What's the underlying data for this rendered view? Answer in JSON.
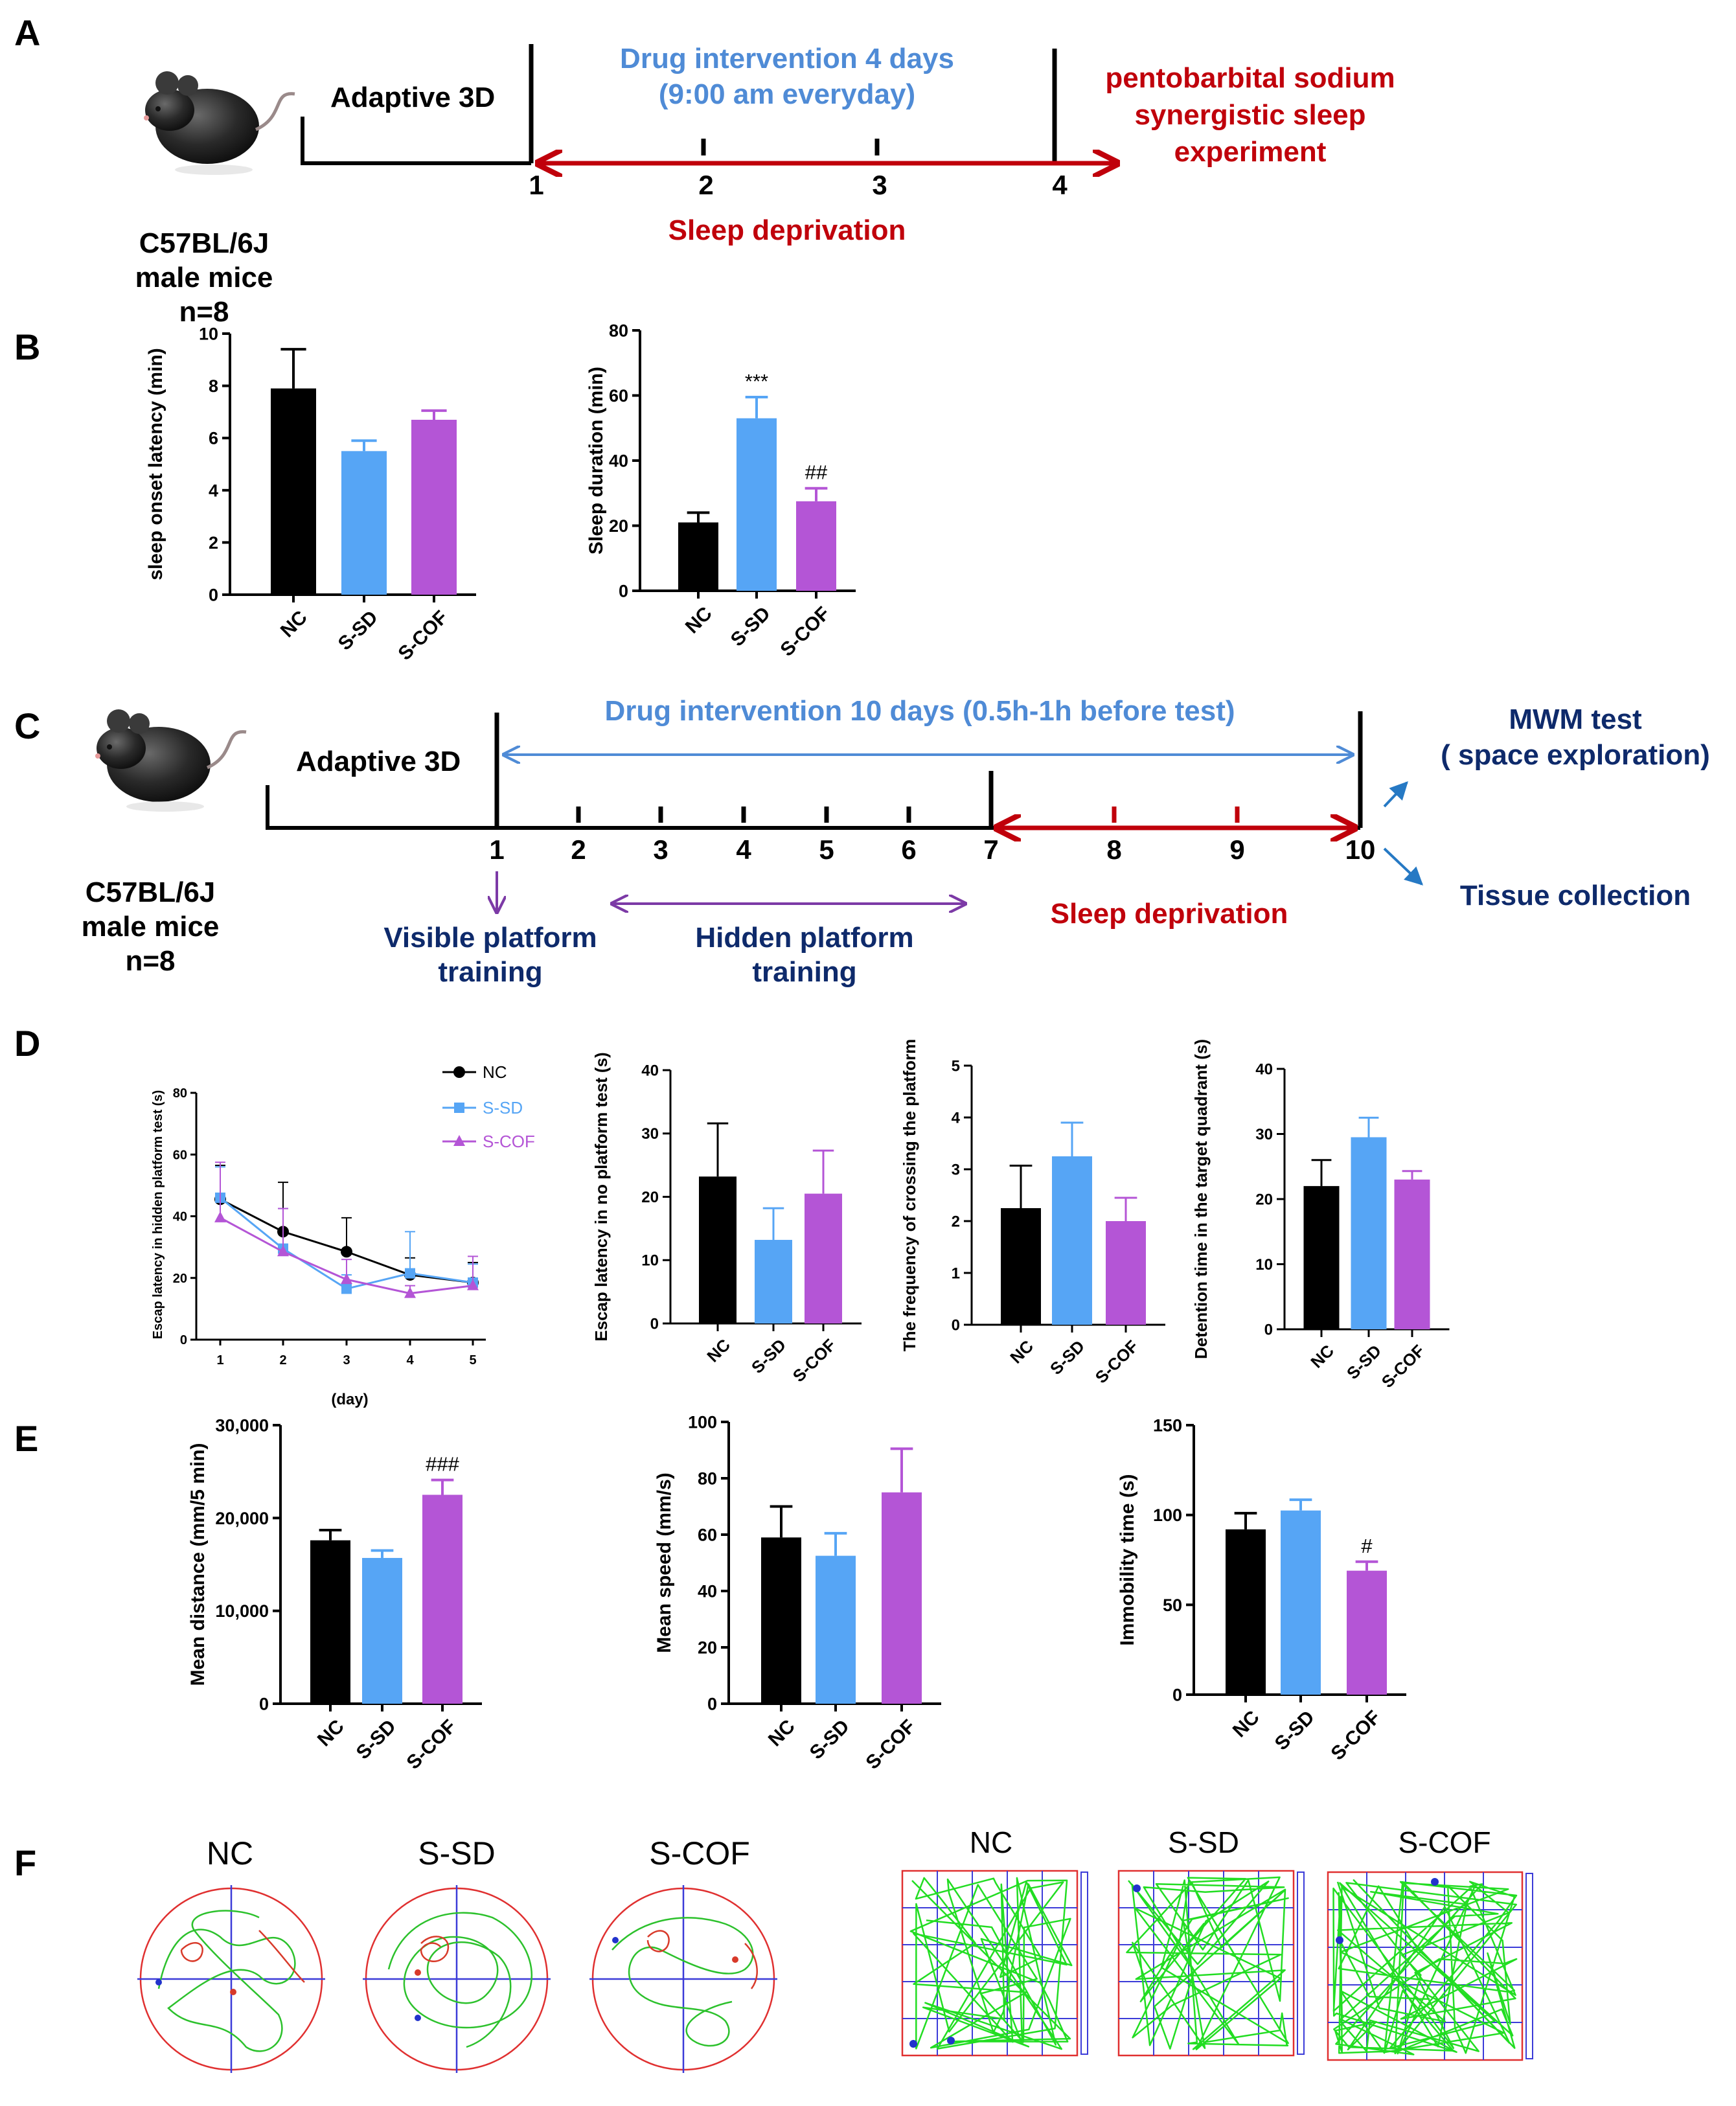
{
  "figure": {
    "panel_letters": [
      "A",
      "B",
      "C",
      "D",
      "E",
      "F"
    ],
    "colors": {
      "nc": "#000000",
      "ssd": "#56a5f5",
      "scof": "#b455d6",
      "red": "#c0000b",
      "blue_text": "#4f8bd6",
      "navy": "#0e2a6b",
      "purple": "#7c3aa6",
      "arrow_blue": "#2679c4"
    }
  },
  "panelA": {
    "mouse_label_1": "C57BL/6J",
    "mouse_label_2": "male mice",
    "mouse_label_3": "n=8",
    "adaptive": "Adaptive 3D",
    "drug_1": "Drug intervention 4 days",
    "drug_2": "(9:00 am everyday)",
    "ticks": [
      "1",
      "2",
      "3",
      "4"
    ],
    "sleep_dep": "Sleep deprivation",
    "exp_1": "pentobarbital sodium",
    "exp_2": "synergistic sleep",
    "exp_3": "experiment"
  },
  "panelC": {
    "mouse_label_1": "C57BL/6J",
    "mouse_label_2": "male mice",
    "mouse_label_3": "n=8",
    "adaptive": "Adaptive 3D",
    "drug": "Drug intervention 10 days (0.5h-1h before test)",
    "ticks": [
      "1",
      "2",
      "3",
      "4",
      "5",
      "6",
      "7",
      "8",
      "9",
      "10"
    ],
    "visible_1": "Visible platform",
    "visible_2": "training",
    "hidden_1": "Hidden platform",
    "hidden_2": "training",
    "sleep_dep": "Sleep deprivation",
    "mwm_1": "MWM test",
    "mwm_2": "( space exploration)",
    "tissue": "Tissue collection"
  },
  "groups": [
    "NC",
    "S-SD",
    "S-COF"
  ],
  "chart_data": [
    {
      "id": "B1",
      "type": "bar",
      "categories": [
        "NC",
        "S-SD",
        "S-COF"
      ],
      "values": [
        7.9,
        5.5,
        6.7
      ],
      "errors": [
        1.5,
        0.4,
        0.35
      ],
      "ylabel": "sleep onset latency (min)",
      "ylim": [
        0,
        10
      ],
      "ticks": [
        "0",
        "2",
        "4",
        "6",
        "8",
        "10"
      ],
      "annotations": [
        "",
        "",
        ""
      ]
    },
    {
      "id": "B2",
      "type": "bar",
      "categories": [
        "NC",
        "S-SD",
        "S-COF"
      ],
      "values": [
        21,
        53,
        27.5
      ],
      "errors": [
        3,
        6.5,
        4
      ],
      "ylabel": "Sleep duration (min)",
      "ylim": [
        0,
        80
      ],
      "ticks": [
        "0",
        "20",
        "40",
        "60",
        "80"
      ],
      "annotations": [
        "",
        "***",
        "##"
      ]
    },
    {
      "id": "D1",
      "type": "line",
      "x": [
        1,
        2,
        3,
        4,
        5
      ],
      "xticks": [
        "1",
        "2",
        "3",
        "4",
        "5"
      ],
      "xlabel": "(day)",
      "ylabel": "Escap latency in hidden platform test (s)",
      "ylim": [
        0,
        80
      ],
      "ticks": [
        "0",
        "20",
        "40",
        "60",
        "80"
      ],
      "series": [
        {
          "name": "NC",
          "values": [
            45.5,
            35,
            28.5,
            21,
            18.5
          ],
          "errors": [
            11,
            16,
            11,
            5.5,
            6.5
          ]
        },
        {
          "name": "S-SD",
          "values": [
            46,
            29.5,
            16.5,
            21.5,
            18.5
          ],
          "errors": [
            10,
            13,
            4.5,
            13.5,
            6
          ]
        },
        {
          "name": "S-COF",
          "values": [
            39.5,
            28.5,
            19.5,
            15,
            17.5
          ],
          "errors": [
            18,
            14,
            6.5,
            2.5,
            9.5
          ]
        }
      ]
    },
    {
      "id": "D2",
      "type": "bar",
      "categories": [
        "NC",
        "S-SD",
        "S-COF"
      ],
      "values": [
        23.2,
        13.2,
        20.5
      ],
      "errors": [
        8.4,
        5,
        6.8
      ],
      "ylabel": "Escap latency in no platform test (s)",
      "ylim": [
        0,
        40
      ],
      "ticks": [
        "0",
        "10",
        "20",
        "30",
        "40"
      ],
      "annotations": [
        "",
        "",
        ""
      ]
    },
    {
      "id": "D3",
      "type": "bar",
      "categories": [
        "NC",
        "S-SD",
        "S-COF"
      ],
      "values": [
        2.25,
        3.25,
        2.0
      ],
      "errors": [
        0.82,
        0.65,
        0.45
      ],
      "ylabel": "The frequency of crossing the platform",
      "ylim": [
        0,
        5
      ],
      "ticks": [
        "0",
        "1",
        "2",
        "3",
        "4",
        "5"
      ],
      "annotations": [
        "",
        "",
        ""
      ]
    },
    {
      "id": "D4",
      "type": "bar",
      "categories": [
        "NC",
        "S-SD",
        "S-COF"
      ],
      "values": [
        22,
        29.5,
        23
      ],
      "errors": [
        4,
        3,
        1.3
      ],
      "ylabel": "Detention time in the target quadrant (s)",
      "ylim": [
        0,
        40
      ],
      "ticks": [
        "0",
        "10",
        "20",
        "30",
        "40"
      ],
      "annotations": [
        "",
        "",
        ""
      ]
    },
    {
      "id": "E1",
      "type": "bar",
      "categories": [
        "NC",
        "S-SD",
        "S-COF"
      ],
      "values": [
        17600,
        15700,
        22500
      ],
      "errors": [
        1100,
        800,
        1600
      ],
      "ylabel": "Mean distance (mm/5 min)",
      "ylim": [
        0,
        30000
      ],
      "ticks": [
        "0",
        "10,000",
        "20,000",
        "30,000"
      ],
      "annotations": [
        "",
        "",
        "###"
      ]
    },
    {
      "id": "E2",
      "type": "bar",
      "categories": [
        "NC",
        "S-SD",
        "S-COF"
      ],
      "values": [
        59,
        52.5,
        75
      ],
      "errors": [
        11,
        8,
        15.5
      ],
      "ylabel": "Mean speed (mm/s)",
      "ylim": [
        0,
        100
      ],
      "ticks": [
        "0",
        "20",
        "40",
        "60",
        "80",
        "100"
      ],
      "annotations": [
        "",
        "",
        ""
      ]
    },
    {
      "id": "E3",
      "type": "bar",
      "categories": [
        "NC",
        "S-SD",
        "S-COF"
      ],
      "values": [
        92,
        102.5,
        69
      ],
      "errors": [
        9,
        6,
        5
      ],
      "ylabel": "Immobility time (s)",
      "ylim": [
        0,
        150
      ],
      "ticks": [
        "0",
        "50",
        "100",
        "150"
      ],
      "annotations": [
        "",
        "",
        "#"
      ]
    }
  ],
  "panelF": {
    "water_maze_labels": [
      "NC",
      "S-SD",
      "S-COF"
    ],
    "open_field_labels": [
      "NC",
      "S-SD",
      "S-COF"
    ]
  }
}
